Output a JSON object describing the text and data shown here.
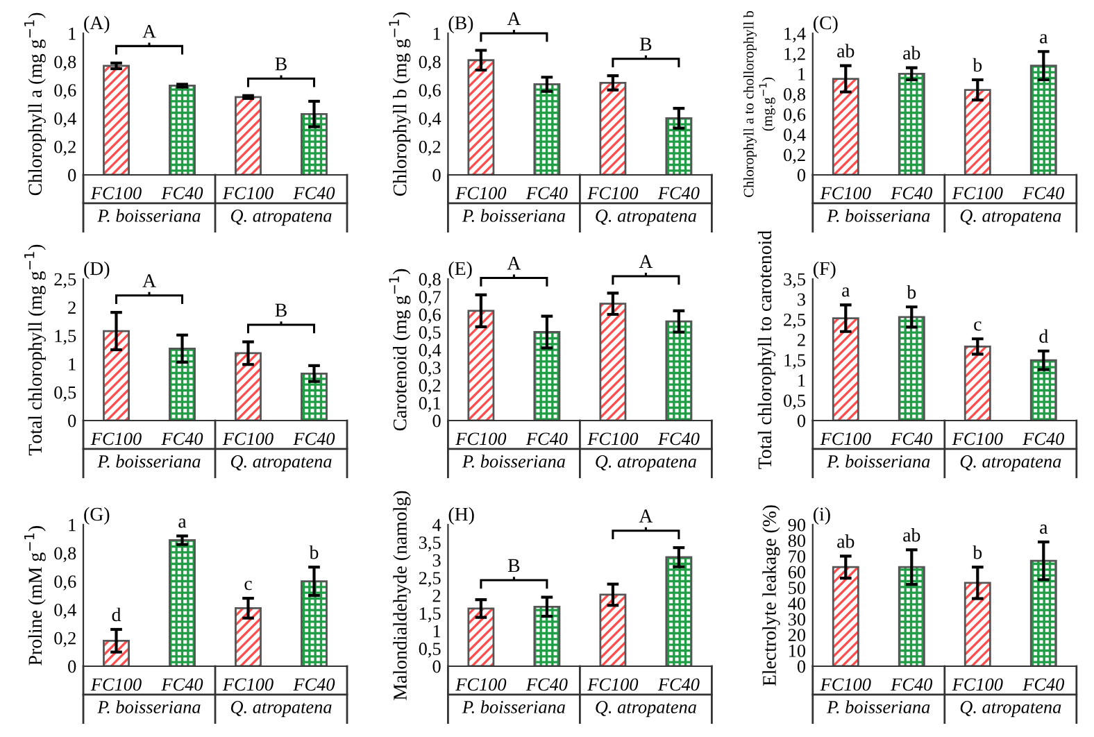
{
  "chart_data": [
    {
      "type": "bar",
      "title": "(A)",
      "ylabel": "Chlorophyll a (mg g$^{−1}$)",
      "categories": [
        "FC100",
        "FC40",
        "FC100",
        "FC40"
      ],
      "values": [
        0.77,
        0.63,
        0.55,
        0.43
      ],
      "errors": [
        0.02,
        0.01,
        0.01,
        0.09
      ],
      "colors": [
        "#ff4d4d",
        "#1f9e45",
        "#ff4d4d",
        "#1f9e45"
      ],
      "ylim": [
        0,
        1
      ],
      "yticks": [
        0,
        {
          "value": 0.2,
          "label": "0,2"
        },
        {
          "value": 0.4,
          "label": "0,4"
        },
        {
          "value": 0.6,
          "label": "0,6"
        },
        {
          "value": 0.8,
          "label": "0,8"
        },
        1
      ],
      "annotations": [
        "P. boisseriana",
        "Q. atropatena",
        "A",
        "B"
      ]
    },
    {
      "type": "bar",
      "title": "(B)",
      "ylabel": "Chlorophyll b (mg g$^{−1}$)",
      "categories": [
        "FC100",
        "FC40",
        "FC100",
        "FC40"
      ],
      "values": [
        0.81,
        0.64,
        0.65,
        0.4
      ],
      "errors": [
        0.07,
        0.05,
        0.05,
        0.07
      ],
      "colors": [
        "#ff4d4d",
        "#1f9e45",
        "#ff4d4d",
        "#1f9e45"
      ],
      "ylim": [
        0,
        1
      ],
      "yticks": [
        0,
        {
          "value": 0.2,
          "label": "0,2"
        },
        {
          "value": 0.4,
          "label": "0,4"
        },
        {
          "value": 0.6,
          "label": "0,6"
        },
        {
          "value": 0.8,
          "label": "0,8"
        },
        1
      ],
      "annotations": [
        "P. boisseriana",
        "Q. atropatena",
        "A",
        "B"
      ]
    },
    {
      "type": "bar",
      "title": "(C)",
      "ylabel": "Chlorophyll a to chollorophyll b\n(mg.g$^{−1}$)",
      "categories": [
        "FC100",
        "FC40",
        "FC100",
        "FC40"
      ],
      "values": [
        0.95,
        1.0,
        0.84,
        1.08
      ],
      "errors": [
        0.13,
        0.06,
        0.1,
        0.14
      ],
      "colors": [
        "#ff4d4d",
        "#1f9e45",
        "#ff4d4d",
        "#1f9e45"
      ],
      "ylim": [
        0,
        1.4
      ],
      "yticks": [
        0,
        {
          "value": 0.2,
          "label": "0,2"
        },
        {
          "value": 0.4,
          "label": "0,4"
        },
        {
          "value": 0.6,
          "label": "0,6"
        },
        {
          "value": 0.8,
          "label": "0,8"
        },
        1,
        {
          "value": 1.2,
          "label": "1,2"
        },
        {
          "value": 1.4,
          "label": "1,4"
        }
      ],
      "annotations": [
        "P. boisseriana",
        "Q. atropatena",
        "ab",
        "ab",
        "b",
        "a"
      ]
    },
    {
      "type": "bar",
      "title": "(D)",
      "ylabel": "Total chlorophyll (mg g$^{−1}$)",
      "categories": [
        "FC100",
        "FC40",
        "FC100",
        "FC40"
      ],
      "values": [
        1.58,
        1.27,
        1.19,
        0.83
      ],
      "errors": [
        0.33,
        0.24,
        0.2,
        0.14
      ],
      "colors": [
        "#ff4d4d",
        "#1f9e45",
        "#ff4d4d",
        "#1f9e45"
      ],
      "ylim": [
        0,
        2.5
      ],
      "yticks": [
        0,
        {
          "value": 0.5,
          "label": "0,5"
        },
        1,
        {
          "value": 1.5,
          "label": "1,5"
        },
        2,
        {
          "value": 2.5,
          "label": "2,5"
        }
      ],
      "annotations": [
        "P. boisseriana",
        "Q. atropatena",
        "A",
        "B"
      ]
    },
    {
      "type": "bar",
      "title": "(E)",
      "ylabel": "Carotenoid (mg g$^{−1}$)",
      "categories": [
        "FC100",
        "FC40",
        "FC100",
        "FC40"
      ],
      "values": [
        0.62,
        0.5,
        0.66,
        0.56
      ],
      "errors": [
        0.09,
        0.09,
        0.06,
        0.06
      ],
      "colors": [
        "#ff4d4d",
        "#1f9e45",
        "#ff4d4d",
        "#1f9e45"
      ],
      "ylim": [
        0,
        0.8
      ],
      "yticks": [
        0,
        {
          "value": 0.1,
          "label": "0,1"
        },
        {
          "value": 0.2,
          "label": "0,2"
        },
        {
          "value": 0.3,
          "label": "0,3"
        },
        {
          "value": 0.4,
          "label": "0,4"
        },
        {
          "value": 0.5,
          "label": "0,5"
        },
        {
          "value": 0.6,
          "label": "0,6"
        },
        {
          "value": 0.7,
          "label": "0,7"
        },
        {
          "value": 0.8,
          "label": "0,8"
        }
      ],
      "annotations": [
        "P. boisseriana",
        "Q. atropatena",
        "A",
        "A"
      ]
    },
    {
      "type": "bar",
      "title": "(F)",
      "ylabel": "Total chlorophyll to carotenoid",
      "categories": [
        "FC100",
        "FC40",
        "FC100",
        "FC40"
      ],
      "values": [
        2.53,
        2.56,
        1.83,
        1.49
      ],
      "errors": [
        0.33,
        0.25,
        0.19,
        0.23
      ],
      "colors": [
        "#ff4d4d",
        "#1f9e45",
        "#ff4d4d",
        "#1f9e45"
      ],
      "ylim": [
        0,
        3.5
      ],
      "yticks": [
        0,
        {
          "value": 0.5,
          "label": "0,5"
        },
        1,
        {
          "value": 1.5,
          "label": "1,5"
        },
        2,
        {
          "value": 2.5,
          "label": "2,5"
        },
        3,
        {
          "value": 3.5,
          "label": "3,5"
        }
      ],
      "annotations": [
        "P. boisseriana",
        "Q. atropatena",
        "a",
        "b",
        "c",
        "d"
      ]
    },
    {
      "type": "bar",
      "title": "(G)",
      "ylabel": "Proline (mM g$^{−1}$)",
      "categories": [
        "FC100",
        "FC40",
        "FC100",
        "FC40"
      ],
      "values": [
        0.18,
        0.89,
        0.41,
        0.6
      ],
      "errors": [
        0.08,
        0.03,
        0.07,
        0.1
      ],
      "colors": [
        "#ff4d4d",
        "#1f9e45",
        "#ff4d4d",
        "#1f9e45"
      ],
      "ylim": [
        0,
        1
      ],
      "yticks": [
        0,
        {
          "value": 0.2,
          "label": "0,2"
        },
        {
          "value": 0.4,
          "label": "0,4"
        },
        {
          "value": 0.6,
          "label": "0,6"
        },
        {
          "value": 0.8,
          "label": "0,8"
        },
        1
      ],
      "annotations": [
        "P. boisseriana",
        "Q. atropatena",
        "d",
        "a",
        "c",
        "b"
      ]
    },
    {
      "type": "bar",
      "title": "(H)",
      "ylabel": "Malondialdehyde (namolg)",
      "categories": [
        "FC100",
        "FC40",
        "FC100",
        "FC40"
      ],
      "values": [
        1.63,
        1.68,
        2.02,
        3.08
      ],
      "errors": [
        0.25,
        0.27,
        0.3,
        0.27
      ],
      "colors": [
        "#ff4d4d",
        "#1f9e45",
        "#ff4d4d",
        "#1f9e45"
      ],
      "ylim": [
        0,
        4
      ],
      "yticks": [
        0,
        {
          "value": 0.5,
          "label": "0,5"
        },
        1,
        {
          "value": 1.5,
          "label": "1,5"
        },
        2,
        {
          "value": 2.5,
          "label": "2,5"
        },
        3,
        {
          "value": 3.5,
          "label": "3,5"
        },
        4
      ],
      "annotations": [
        "P. boisseriana",
        "Q. atropatena",
        "B",
        "A"
      ]
    },
    {
      "type": "bar",
      "title": "(i)",
      "ylabel": "Electrolyte leakage (%)",
      "categories": [
        "FC100",
        "FC40",
        "FC100",
        "FC40"
      ],
      "values": [
        63,
        63,
        53,
        67
      ],
      "errors": [
        7,
        11,
        10,
        12
      ],
      "colors": [
        "#ff4d4d",
        "#1f9e45",
        "#ff4d4d",
        "#1f9e45"
      ],
      "ylim": [
        0,
        90
      ],
      "yticks": [
        0,
        10,
        20,
        30,
        40,
        50,
        60,
        70,
        80,
        90
      ],
      "annotations": [
        "P. boisseriana",
        "Q. atropatena",
        "ab",
        "ab",
        "b",
        "a"
      ]
    }
  ]
}
